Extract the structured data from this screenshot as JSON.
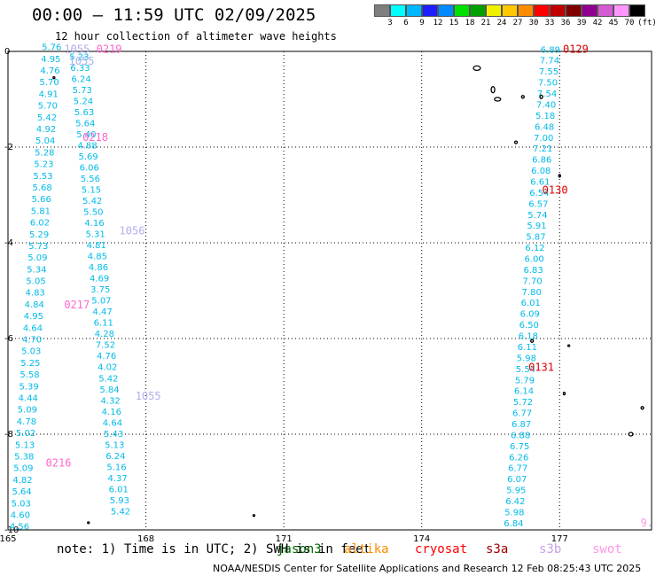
{
  "header": {
    "title": "00:00 – 11:59 UTC 02/09/2025",
    "subtitle": "12 hour collection of altimeter wave heights"
  },
  "color_scale": {
    "ticks": [
      "3",
      "6",
      "9",
      "12",
      "15",
      "18",
      "21",
      "24",
      "27",
      "30",
      "33",
      "36",
      "39",
      "42",
      "45",
      "70",
      "(ft)"
    ],
    "colors": [
      "#7f7f7f",
      "#00ffff",
      "#00b8ff",
      "#1e1eff",
      "#008cff",
      "#00e000",
      "#00a000",
      "#f0f000",
      "#ffc800",
      "#ff8c00",
      "#ff0000",
      "#c00000",
      "#800000",
      "#900090",
      "#d45ad4",
      "#ff96ff",
      "#000000"
    ]
  },
  "footer": {
    "note": "note: 1) Time is in UTC; 2) SWH is in feet",
    "satellites": [
      {
        "name": "jason3",
        "color": "#006400"
      },
      {
        "name": "altika",
        "color": "#ff8c00"
      },
      {
        "name": "cryosat",
        "color": "#ff0000"
      },
      {
        "name": "s3a",
        "color": "#a00000"
      },
      {
        "name": "s3b",
        "color": "#c8a0e8"
      },
      {
        "name": "swot",
        "color": "#ff96e6"
      }
    ],
    "credit": "NOAA/NESDIS Center for Satellite Applications and Research    12 Feb 08:25:43 UTC 2025"
  },
  "chart_data": {
    "type": "scatter",
    "title": "00:00 – 11:59 UTC 02/09/2025",
    "subtitle": "12 hour collection of altimeter wave heights",
    "units": "(ft)",
    "xlabel": "",
    "ylabel": "",
    "xlim": [
      165,
      179
    ],
    "ylim": [
      -10,
      0
    ],
    "x_ticks": [
      165,
      168,
      171,
      174,
      177
    ],
    "y_ticks": [
      0,
      -2,
      -4,
      -6,
      -8,
      -10
    ],
    "grid": true,
    "tracks": [
      {
        "name": "track-0216",
        "time_label": "0216",
        "label_lon": 166.1,
        "label_lat": -8.6,
        "color": "#00bbe8",
        "lon_start": 165.95,
        "lat_start": 0.1,
        "lon_end": 165.25,
        "lat_end": -9.92,
        "values": [
          "5.76",
          "4.95",
          "4.76",
          "5.70",
          "4.91",
          "5.70",
          "5.42",
          "4.92",
          "5.04",
          "5.28",
          "5.23",
          "5.53",
          "5.68",
          "5.66",
          "5.81",
          "6.02",
          "5.29",
          "5.73",
          "5.09",
          "5.34",
          "5.05",
          "4.83",
          "4.84",
          "4.95",
          "4.64",
          "4.70",
          "5.03",
          "5.25",
          "5.58",
          "5.39",
          "4.44",
          "5.09",
          "4.78",
          "5.02",
          "5.13",
          "5.38",
          "5.09",
          "4.82",
          "5.64",
          "5.03",
          "4.60",
          "4.56"
        ]
      },
      {
        "name": "track-0217",
        "time_label": "0217",
        "label_lon": 166.5,
        "label_lat": -5.3,
        "color": "#00bbe8",
        "lon_start": 166.55,
        "lat_start": -0.1,
        "lon_end": 167.45,
        "lat_end": -9.6,
        "values": [
          "5.23",
          "6.33",
          "6.24",
          "5.73",
          "5.24",
          "5.63",
          "5.64",
          "5.40",
          "4.88",
          "5.69",
          "6.06",
          "5.56",
          "5.15",
          "5.42",
          "5.50",
          "4.16",
          "5.31",
          "4.81",
          "4.85",
          "4.86",
          "4.69",
          "3.75",
          "5.07",
          "4.47",
          "6.11",
          "4.28",
          "7.52",
          "4.76",
          "4.02",
          "5.42",
          "5.84",
          "4.32",
          "4.16",
          "4.64",
          "5.43",
          "5.13",
          "6.24",
          "5.16",
          "4.37",
          "6.01",
          "5.93",
          "5.42"
        ]
      },
      {
        "name": "track-0130",
        "time_label": "0130",
        "label_lon": 176.9,
        "label_lat": -2.9,
        "color": "#00bbe8",
        "lon_start": 176.8,
        "lat_start": 0.05,
        "lon_end": 176.0,
        "lat_end": -9.85,
        "values": [
          "6.89",
          "7.74",
          "7.55",
          "7.50",
          "7.54",
          "7.40",
          "5.18",
          "6.48",
          "7.00",
          "7.21",
          "6.86",
          "6.08",
          "6.61",
          "6.54",
          "6.57",
          "5.74",
          "5.91",
          "5.87",
          "6.12",
          "6.00",
          "6.83",
          "7.70",
          "7.80",
          "6.01",
          "6.09",
          "6.50",
          "6.18",
          "6.11",
          "5.98",
          "5.54",
          "5.79",
          "6.14",
          "5.72",
          "6.77",
          "6.87",
          "6.88",
          "6.75",
          "6.26",
          "6.77",
          "6.07",
          "5.95",
          "6.42",
          "5.98",
          "6.84"
        ]
      }
    ],
    "annotations": [
      {
        "text": "0219",
        "lon": 167.2,
        "lat": 0.05,
        "color": "#ff66cc"
      },
      {
        "text": "1055",
        "lon": 166.5,
        "lat": 0.05,
        "color": "#b0b0ee"
      },
      {
        "text": "1055",
        "lon": 166.6,
        "lat": -0.2,
        "color": "#b0b0ee"
      },
      {
        "text": "0218",
        "lon": 166.9,
        "lat": -1.8,
        "color": "#ff66cc"
      },
      {
        "text": "1056",
        "lon": 167.7,
        "lat": -3.75,
        "color": "#b0b0ee"
      },
      {
        "text": "1055",
        "lon": 168.05,
        "lat": -7.2,
        "color": "#b0b0ee"
      },
      {
        "text": "0129",
        "lon": 177.35,
        "lat": 0.05,
        "color": "#dd0000"
      },
      {
        "text": "0131",
        "lon": 176.6,
        "lat": -6.6,
        "color": "#dd0000"
      },
      {
        "text": "9.",
        "lon": 178.9,
        "lat": -9.85,
        "color": "#ff96e6"
      }
    ]
  }
}
